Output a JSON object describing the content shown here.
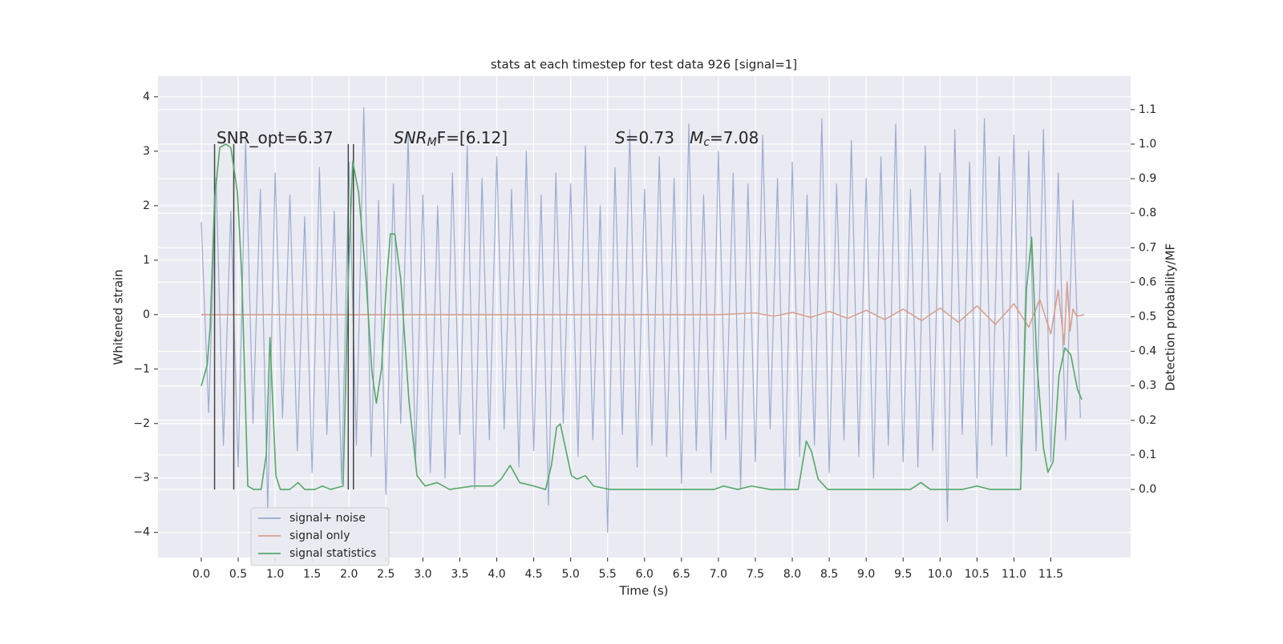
{
  "chart_data": {
    "type": "line",
    "title": "stats at each timestep for test data 926 [signal=1]",
    "xlabel": "Time (s)",
    "ylabel": "Whitened strain",
    "y2label": "Detection probability/MF",
    "xlim": [
      -0.586,
      12.58
    ],
    "ylim": [
      -4.46,
      4.38
    ],
    "y2lim": [
      -0.197,
      1.197
    ],
    "xticks": [
      {
        "value": 0,
        "label": "0.0"
      },
      0.5,
      {
        "value": 1,
        "label": "1.0"
      },
      1.5,
      {
        "value": 2,
        "label": "2.0"
      },
      2.5,
      {
        "value": 3,
        "label": "3.0"
      },
      3.5,
      {
        "value": 4,
        "label": "4.0"
      },
      4.5,
      {
        "value": 5,
        "label": "5.0"
      },
      5.5,
      {
        "value": 6,
        "label": "6.0"
      },
      6.5,
      {
        "value": 7,
        "label": "7.0"
      },
      7.5,
      {
        "value": 8,
        "label": "8.0"
      },
      8.5,
      {
        "value": 9,
        "label": "9.0"
      },
      9.5,
      {
        "value": 10,
        "label": "10.0"
      },
      10.5,
      {
        "value": 11,
        "label": "11.0"
      },
      11.5
    ],
    "yticks": [
      {
        "value": -4,
        "label": "−4"
      },
      {
        "value": -3,
        "label": "−3"
      },
      {
        "value": -2,
        "label": "−2"
      },
      {
        "value": -1,
        "label": "−1"
      },
      0,
      1,
      2,
      3,
      4
    ],
    "y2ticks": [
      {
        "value": 0,
        "label": "0.0"
      },
      0.1,
      0.2,
      0.3,
      0.4,
      0.5,
      0.6,
      0.7,
      0.8,
      0.9,
      {
        "value": 1,
        "label": "1.0"
      },
      1.1
    ],
    "grid": true,
    "legend": "lower left",
    "series": [
      {
        "name": "signal+ noise",
        "color": "#97a9cf",
        "x": [
          0,
          0.1,
          0.2,
          0.3,
          0.4,
          0.5,
          0.6,
          0.7,
          0.8,
          0.9,
          1,
          1.1,
          1.2,
          1.3,
          1.4,
          1.5,
          1.6,
          1.7,
          1.8,
          1.9,
          2,
          2.1,
          2.2,
          2.3,
          2.4,
          2.5,
          2.6,
          2.7,
          2.8,
          2.9,
          3,
          3.1,
          3.2,
          3.3,
          3.4,
          3.5,
          3.6,
          3.7,
          3.8,
          3.9,
          4,
          4.1,
          4.2,
          4.3,
          4.4,
          4.5,
          4.6,
          4.7,
          4.8,
          4.9,
          5,
          5.1,
          5.2,
          5.3,
          5.4,
          5.5,
          5.6,
          5.7,
          5.8,
          5.9,
          6,
          6.1,
          6.2,
          6.3,
          6.4,
          6.5,
          6.6,
          6.7,
          6.8,
          6.9,
          7,
          7.1,
          7.2,
          7.3,
          7.4,
          7.5,
          7.6,
          7.7,
          7.8,
          7.9,
          8,
          8.1,
          8.2,
          8.3,
          8.4,
          8.5,
          8.6,
          8.7,
          8.8,
          8.9,
          9,
          9.1,
          9.2,
          9.3,
          9.4,
          9.5,
          9.6,
          9.7,
          9.8,
          9.9,
          10,
          10.1,
          10.2,
          10.3,
          10.4,
          10.5,
          10.6,
          10.7,
          10.8,
          10.9,
          11,
          11.1,
          11.2,
          11.3,
          11.4,
          11.5,
          11.6,
          11.7,
          11.8,
          11.9
        ],
        "values": [
          1.7,
          -1.8,
          2.5,
          -2.4,
          1.9,
          -2.8,
          3.2,
          -2.0,
          2.3,
          -3.6,
          2.6,
          -1.9,
          2.2,
          -2.5,
          1.8,
          -2.9,
          2.7,
          -2.2,
          1.9,
          -3.1,
          2.8,
          -2.4,
          3.8,
          -2.6,
          2.1,
          -3.3,
          2.4,
          -2.0,
          3.3,
          -2.7,
          2.2,
          -2.9,
          2.0,
          -3.0,
          2.6,
          -2.2,
          3.1,
          -3.2,
          2.5,
          -2.3,
          2.9,
          -2.1,
          2.3,
          -2.8,
          3.0,
          -2.5,
          2.2,
          -3.5,
          2.6,
          -2.0,
          2.4,
          -2.6,
          3.1,
          -2.3,
          2.0,
          -4.0,
          2.7,
          -2.2,
          3.4,
          -2.8,
          2.3,
          -2.4,
          2.9,
          -2.6,
          2.5,
          -3.1,
          3.5,
          -2.5,
          2.2,
          -2.9,
          3.0,
          -2.3,
          2.6,
          -3.2,
          2.4,
          -2.7,
          3.3,
          -2.1,
          2.5,
          -3.2,
          2.8,
          -2.6,
          2.2,
          -2.4,
          3.6,
          -2.9,
          2.4,
          -2.3,
          3.2,
          -2.6,
          2.5,
          -3.0,
          2.9,
          -2.4,
          3.5,
          -2.7,
          2.3,
          -2.8,
          3.1,
          -2.5,
          2.6,
          -3.8,
          3.4,
          -2.2,
          2.8,
          -3.0,
          3.6,
          -2.4,
          2.9,
          -2.6,
          3.3,
          -2.9,
          3.0,
          -2.5,
          3.4,
          -2.7,
          2.6,
          -2.3,
          2.1,
          -1.9
        ]
      },
      {
        "name": "signal only",
        "color": "#d9a08e",
        "x": [
          0,
          7,
          7.5,
          7.75,
          8,
          8.25,
          8.5,
          8.75,
          9,
          9.25,
          9.5,
          9.75,
          10,
          10.25,
          10.5,
          10.75,
          11,
          11.2,
          11.35,
          11.5,
          11.6,
          11.68,
          11.72,
          11.76,
          11.8,
          11.85,
          11.95
        ],
        "values": [
          0,
          0,
          0.03,
          -0.03,
          0.04,
          -0.05,
          0.06,
          -0.07,
          0.08,
          -0.09,
          0.1,
          -0.11,
          0.12,
          -0.14,
          0.16,
          -0.18,
          0.2,
          -0.23,
          0.28,
          -0.35,
          0.45,
          -0.55,
          0.6,
          -0.3,
          0.1,
          -0.03,
          0
        ]
      },
      {
        "name": "signal statistics",
        "color": "#55a868",
        "axis": "y2",
        "x": [
          0,
          0.08,
          0.12,
          0.18,
          0.25,
          0.33,
          0.4,
          0.49,
          0.55,
          0.63,
          0.71,
          0.81,
          0.88,
          0.93,
          1.01,
          1.07,
          1.2,
          1.31,
          1.4,
          1.54,
          1.64,
          1.75,
          1.92,
          1.99,
          2.05,
          2.13,
          2.23,
          2.31,
          2.37,
          2.44,
          2.51,
          2.56,
          2.62,
          2.7,
          2.81,
          2.92,
          3.03,
          3.19,
          3.36,
          3.68,
          3.95,
          4.06,
          4.18,
          4.31,
          4.5,
          4.66,
          4.74,
          4.81,
          4.86,
          4.93,
          5.01,
          5.09,
          5.2,
          5.31,
          5.53,
          5.96,
          6.5,
          6.94,
          7.07,
          7.26,
          7.45,
          7.7,
          8.08,
          8.19,
          8.26,
          8.35,
          8.48,
          9.11,
          9.6,
          9.74,
          9.87,
          10.3,
          10.5,
          10.68,
          11.09,
          11.17,
          11.24,
          11.31,
          11.4,
          11.46,
          11.53,
          11.61,
          11.69,
          11.77,
          11.86,
          11.92
        ],
        "values": [
          0.3,
          0.36,
          0.47,
          0.84,
          0.99,
          1.0,
          0.99,
          0.86,
          0.61,
          0.01,
          0,
          0,
          0.1,
          0.44,
          0.04,
          0,
          0,
          0.02,
          0,
          0,
          0.01,
          0,
          0.01,
          0.61,
          0.95,
          0.86,
          0.61,
          0.34,
          0.25,
          0.35,
          0.61,
          0.74,
          0.74,
          0.61,
          0.26,
          0.04,
          0.01,
          0.02,
          0,
          0.01,
          0.01,
          0.03,
          0.07,
          0.02,
          0.01,
          0,
          0.07,
          0.18,
          0.19,
          0.12,
          0.04,
          0.03,
          0.04,
          0.01,
          0,
          0,
          0,
          0,
          0.01,
          0,
          0.01,
          0,
          0,
          0.14,
          0.11,
          0.03,
          0,
          0,
          0,
          0.02,
          0,
          0,
          0.01,
          0,
          0,
          0.58,
          0.73,
          0.37,
          0.12,
          0.05,
          0.08,
          0.33,
          0.41,
          0.39,
          0.29,
          0.26
        ]
      }
    ],
    "vlines": {
      "x": [
        0.18,
        0.44,
        1.99,
        2.06
      ],
      "ymin": 0,
      "ymax": 1,
      "axis": "y2",
      "color": "#444444"
    },
    "annotations": [
      {
        "parts": [
          {
            "text": "SNR_opt=6.37"
          }
        ]
      },
      {
        "parts": [
          {
            "text": "SNR",
            "style": "italic"
          },
          {
            "text": "M",
            "style": "sub"
          },
          {
            "text": "F=[6.12]"
          }
        ]
      },
      {
        "parts": [
          {
            "text": "S",
            "style": "italic"
          },
          {
            "text": "=0.73   "
          },
          {
            "text": "M",
            "style": "italic"
          },
          {
            "text": "c",
            "style": "sub"
          },
          {
            "text": "=7.08"
          }
        ]
      }
    ]
  }
}
